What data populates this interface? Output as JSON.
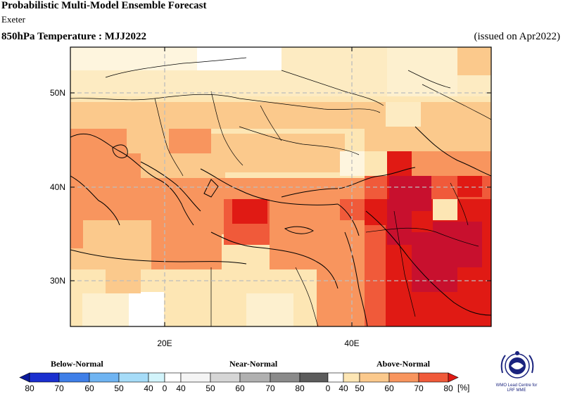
{
  "header": {
    "title": "Probabilistic Multi-Model Ensemble Forecast",
    "center": "Exeter",
    "variable_season": "850hPa Temperature : MJJ2022",
    "issued": "(issued on Apr2022)"
  },
  "map": {
    "lat_labels": [
      "50N",
      "40N",
      "30N"
    ],
    "lon_labels": [
      "20E",
      "40E"
    ],
    "grid": true,
    "description_levels": [
      "Above-Normal 40-80%"
    ]
  },
  "colorbar": {
    "categories": [
      "Below-Normal",
      "Near-Normal",
      "Above-Normal"
    ],
    "ticks_below": [
      "80",
      "70",
      "60",
      "50",
      "40",
      "0"
    ],
    "ticks_near": [
      "40",
      "50",
      "60",
      "70",
      "80",
      "0"
    ],
    "ticks_above": [
      "40",
      "50",
      "60",
      "70",
      "80"
    ],
    "unit": "[%]",
    "colors_below": [
      "#1a2fcf",
      "#3f7fe8",
      "#6fb4f2",
      "#a6dcf8",
      "#d2f4fb"
    ],
    "colors_near": [
      "#f4f4f4",
      "#d6d6d6",
      "#b0b0b0",
      "#8a8a8a",
      "#5c5c5c",
      "#3a3a3a"
    ],
    "colors_above": [
      "#fde6b4",
      "#fbc98c",
      "#f8955e",
      "#f05a3a",
      "#e01a14"
    ]
  },
  "logo": {
    "text_line1": "WMO Lead Centre for",
    "text_line2": "LRF MME"
  }
}
